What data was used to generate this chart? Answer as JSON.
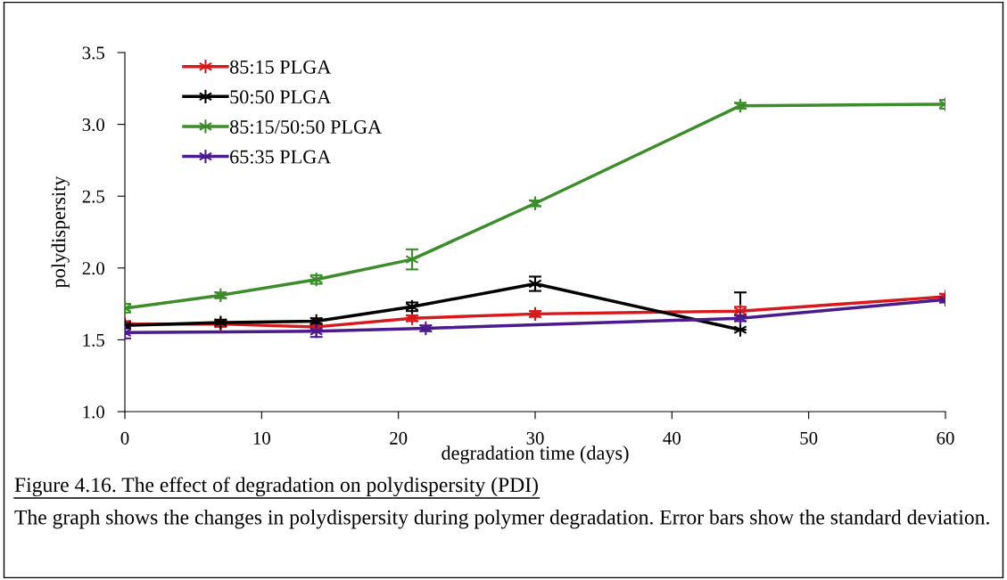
{
  "chart_data": {
    "type": "line",
    "title": "Figure 4.16. The effect of degradation on polydispersity (PDI)",
    "xlabel": "degradation time (days)",
    "ylabel": "polydispersity",
    "annotations": [
      "The graph shows the changes in polydispersity during polymer degradation. Error bars show the standard deviation."
    ],
    "xlim": [
      0,
      60
    ],
    "xticks": [
      0,
      10,
      20,
      30,
      40,
      50,
      60
    ],
    "ylim": [
      1.0,
      3.5
    ],
    "yticks": [
      {
        "value": 1.0,
        "label": "1.0"
      },
      {
        "value": 1.5,
        "label": "1.5"
      },
      {
        "value": 2.0,
        "label": "2.0"
      },
      {
        "value": 2.5,
        "label": "2.5"
      },
      {
        "value": 3.0,
        "label": "3.0"
      },
      {
        "value": 3.5,
        "label": "3.5"
      }
    ],
    "grid": false,
    "legend": "top left",
    "marker": "cross",
    "line_style": "solid",
    "series": [
      {
        "name": "85:15 PLGA",
        "color": "#d7191c",
        "x": [
          0,
          7,
          14,
          21,
          30,
          45,
          60
        ],
        "values": [
          1.61,
          1.61,
          1.59,
          1.65,
          1.68,
          1.7,
          1.8
        ],
        "errors": [
          0.02,
          0.02,
          0.02,
          0.02,
          0.02,
          0.03,
          0.02
        ]
      },
      {
        "name": "50:50 PLGA",
        "color": "#000000",
        "x": [
          0,
          7,
          14,
          21,
          30,
          45
        ],
        "values": [
          1.6,
          1.62,
          1.63,
          1.73,
          1.89,
          1.57
        ],
        "errors": [
          0.02,
          0.02,
          0.02,
          0.03,
          0.05,
          [
            1.57,
            1.83
          ]
        ]
      },
      {
        "name": "85:15/50:50 PLGA",
        "color": "#3c8c2c",
        "x": [
          0,
          7,
          14,
          21,
          30,
          45,
          60
        ],
        "values": [
          1.72,
          1.81,
          1.92,
          2.06,
          2.45,
          3.13,
          3.14
        ],
        "errors": [
          0.03,
          0.02,
          0.03,
          0.07,
          0.02,
          0.02,
          0.03
        ]
      },
      {
        "name": "65:35 PLGA",
        "color": "#4b1a8c",
        "x": [
          0,
          14,
          22,
          45,
          60
        ],
        "values": [
          1.55,
          1.56,
          1.58,
          1.65,
          1.78
        ],
        "errors": [
          0.04,
          0.04,
          0.02,
          0.02,
          0.02
        ]
      }
    ]
  }
}
